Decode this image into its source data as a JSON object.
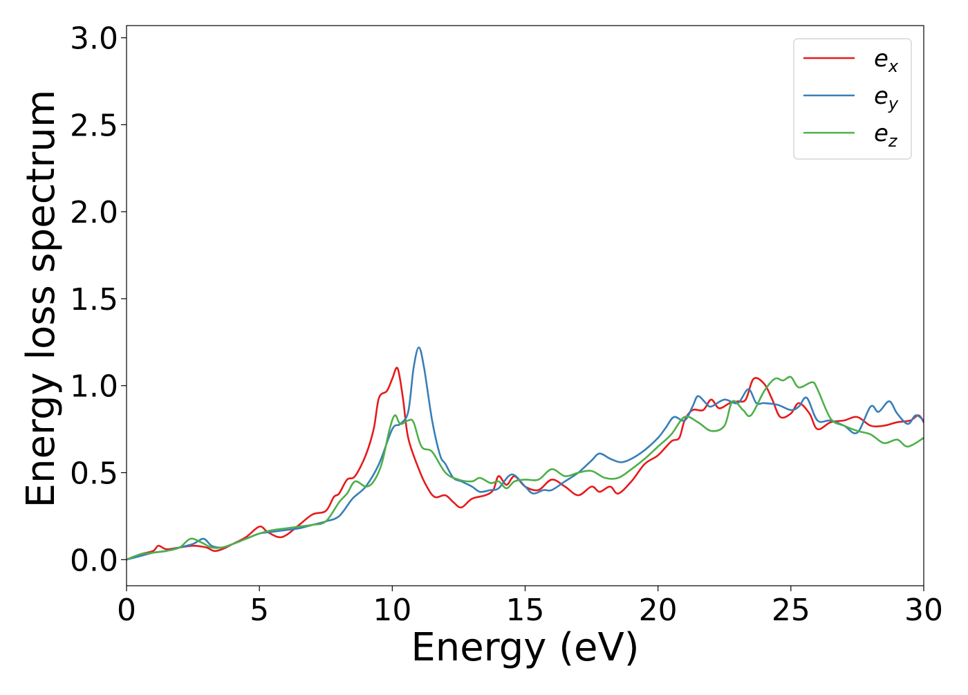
{
  "chart_data": {
    "type": "line",
    "title": "",
    "xlabel": "Energy (eV)",
    "ylabel": "Energy loss spectrum",
    "xlim": [
      0,
      30
    ],
    "ylim": [
      -0.15,
      3.07
    ],
    "xticks": [
      0,
      5,
      10,
      15,
      20,
      25,
      30
    ],
    "yticks": [
      0.0,
      0.5,
      1.0,
      1.5,
      2.0,
      2.5,
      3.0
    ],
    "grid": false,
    "legend_position": "top-right",
    "series": [
      {
        "name": "e",
        "subscript": "x",
        "color": "#e41a1c",
        "points": [
          [
            0,
            0
          ],
          [
            0.5,
            0.03
          ],
          [
            1,
            0.05
          ],
          [
            1.2,
            0.08
          ],
          [
            1.5,
            0.06
          ],
          [
            2,
            0.07
          ],
          [
            2.5,
            0.08
          ],
          [
            3,
            0.07
          ],
          [
            3.3,
            0.05
          ],
          [
            3.6,
            0.06
          ],
          [
            4,
            0.09
          ],
          [
            4.5,
            0.13
          ],
          [
            5,
            0.19
          ],
          [
            5.3,
            0.16
          ],
          [
            5.7,
            0.13
          ],
          [
            6,
            0.14
          ],
          [
            6.5,
            0.2
          ],
          [
            7,
            0.26
          ],
          [
            7.5,
            0.28
          ],
          [
            7.8,
            0.36
          ],
          [
            8,
            0.38
          ],
          [
            8.3,
            0.46
          ],
          [
            8.6,
            0.48
          ],
          [
            9,
            0.6
          ],
          [
            9.3,
            0.75
          ],
          [
            9.5,
            0.93
          ],
          [
            9.8,
            0.97
          ],
          [
            10,
            1.04
          ],
          [
            10.2,
            1.1
          ],
          [
            10.4,
            0.93
          ],
          [
            10.6,
            0.7
          ],
          [
            11,
            0.52
          ],
          [
            11.3,
            0.42
          ],
          [
            11.6,
            0.36
          ],
          [
            12,
            0.37
          ],
          [
            12.3,
            0.33
          ],
          [
            12.6,
            0.3
          ],
          [
            13,
            0.35
          ],
          [
            13.5,
            0.37
          ],
          [
            13.8,
            0.4
          ],
          [
            14,
            0.48
          ],
          [
            14.3,
            0.43
          ],
          [
            14.6,
            0.48
          ],
          [
            15,
            0.42
          ],
          [
            15.5,
            0.4
          ],
          [
            16,
            0.46
          ],
          [
            16.5,
            0.42
          ],
          [
            17,
            0.37
          ],
          [
            17.5,
            0.42
          ],
          [
            17.8,
            0.39
          ],
          [
            18.2,
            0.42
          ],
          [
            18.5,
            0.38
          ],
          [
            19,
            0.45
          ],
          [
            19.5,
            0.55
          ],
          [
            20,
            0.6
          ],
          [
            20.5,
            0.68
          ],
          [
            20.8,
            0.7
          ],
          [
            21,
            0.8
          ],
          [
            21.3,
            0.86
          ],
          [
            21.7,
            0.86
          ],
          [
            22,
            0.92
          ],
          [
            22.3,
            0.87
          ],
          [
            22.7,
            0.9
          ],
          [
            23,
            0.91
          ],
          [
            23.3,
            0.92
          ],
          [
            23.6,
            1.04
          ],
          [
            24,
            1.01
          ],
          [
            24.3,
            0.92
          ],
          [
            24.6,
            0.82
          ],
          [
            25,
            0.84
          ],
          [
            25.3,
            0.9
          ],
          [
            25.7,
            0.84
          ],
          [
            26,
            0.75
          ],
          [
            26.5,
            0.79
          ],
          [
            27,
            0.8
          ],
          [
            27.5,
            0.82
          ],
          [
            28,
            0.77
          ],
          [
            28.5,
            0.77
          ],
          [
            29,
            0.79
          ],
          [
            29.5,
            0.8
          ],
          [
            29.8,
            0.83
          ],
          [
            30,
            0.79
          ]
        ]
      },
      {
        "name": "e",
        "subscript": "y",
        "color": "#377eb8",
        "points": [
          [
            0,
            0
          ],
          [
            0.5,
            0.02
          ],
          [
            1,
            0.04
          ],
          [
            1.5,
            0.05
          ],
          [
            2,
            0.07
          ],
          [
            2.5,
            0.09
          ],
          [
            2.9,
            0.12
          ],
          [
            3.2,
            0.08
          ],
          [
            3.6,
            0.07
          ],
          [
            4,
            0.09
          ],
          [
            4.5,
            0.12
          ],
          [
            5,
            0.15
          ],
          [
            5.5,
            0.16
          ],
          [
            6,
            0.17
          ],
          [
            6.5,
            0.18
          ],
          [
            7,
            0.2
          ],
          [
            7.5,
            0.22
          ],
          [
            8,
            0.25
          ],
          [
            8.5,
            0.35
          ],
          [
            9,
            0.42
          ],
          [
            9.5,
            0.55
          ],
          [
            10,
            0.75
          ],
          [
            10.3,
            0.78
          ],
          [
            10.6,
            0.85
          ],
          [
            10.8,
            1.1
          ],
          [
            11,
            1.22
          ],
          [
            11.2,
            1.1
          ],
          [
            11.5,
            0.8
          ],
          [
            11.8,
            0.6
          ],
          [
            12,
            0.55
          ],
          [
            12.3,
            0.47
          ],
          [
            12.6,
            0.45
          ],
          [
            13,
            0.42
          ],
          [
            13.3,
            0.39
          ],
          [
            13.7,
            0.4
          ],
          [
            14,
            0.41
          ],
          [
            14.5,
            0.49
          ],
          [
            15,
            0.42
          ],
          [
            15.3,
            0.38
          ],
          [
            15.7,
            0.4
          ],
          [
            16,
            0.4
          ],
          [
            16.5,
            0.45
          ],
          [
            17,
            0.5
          ],
          [
            17.5,
            0.57
          ],
          [
            17.8,
            0.61
          ],
          [
            18.2,
            0.58
          ],
          [
            18.6,
            0.56
          ],
          [
            19,
            0.58
          ],
          [
            19.5,
            0.63
          ],
          [
            20,
            0.7
          ],
          [
            20.3,
            0.76
          ],
          [
            20.6,
            0.82
          ],
          [
            21,
            0.8
          ],
          [
            21.3,
            0.88
          ],
          [
            21.5,
            0.94
          ],
          [
            21.8,
            0.9
          ],
          [
            22,
            0.88
          ],
          [
            22.5,
            0.92
          ],
          [
            23,
            0.9
          ],
          [
            23.4,
            0.98
          ],
          [
            23.7,
            0.9
          ],
          [
            24,
            0.9
          ],
          [
            24.5,
            0.89
          ],
          [
            25,
            0.86
          ],
          [
            25.3,
            0.88
          ],
          [
            25.6,
            0.93
          ],
          [
            26,
            0.8
          ],
          [
            26.5,
            0.8
          ],
          [
            27,
            0.77
          ],
          [
            27.5,
            0.73
          ],
          [
            28,
            0.88
          ],
          [
            28.3,
            0.85
          ],
          [
            28.7,
            0.91
          ],
          [
            29,
            0.84
          ],
          [
            29.4,
            0.78
          ],
          [
            29.7,
            0.83
          ],
          [
            30,
            0.8
          ]
        ]
      },
      {
        "name": "e",
        "subscript": "z",
        "color": "#4daf4a",
        "points": [
          [
            0,
            0
          ],
          [
            0.5,
            0.03
          ],
          [
            1,
            0.04
          ],
          [
            1.5,
            0.05
          ],
          [
            2,
            0.07
          ],
          [
            2.4,
            0.12
          ],
          [
            2.8,
            0.1
          ],
          [
            3.2,
            0.07
          ],
          [
            3.6,
            0.07
          ],
          [
            4,
            0.09
          ],
          [
            4.5,
            0.12
          ],
          [
            5,
            0.15
          ],
          [
            5.5,
            0.17
          ],
          [
            6,
            0.18
          ],
          [
            6.5,
            0.19
          ],
          [
            7,
            0.2
          ],
          [
            7.5,
            0.22
          ],
          [
            8,
            0.33
          ],
          [
            8.3,
            0.38
          ],
          [
            8.6,
            0.45
          ],
          [
            9,
            0.42
          ],
          [
            9.3,
            0.45
          ],
          [
            9.6,
            0.55
          ],
          [
            9.9,
            0.75
          ],
          [
            10.1,
            0.83
          ],
          [
            10.3,
            0.78
          ],
          [
            10.6,
            0.8
          ],
          [
            10.8,
            0.79
          ],
          [
            11.1,
            0.65
          ],
          [
            11.5,
            0.62
          ],
          [
            12,
            0.5
          ],
          [
            12.5,
            0.46
          ],
          [
            13,
            0.45
          ],
          [
            13.3,
            0.47
          ],
          [
            13.7,
            0.44
          ],
          [
            14,
            0.45
          ],
          [
            14.3,
            0.41
          ],
          [
            14.6,
            0.45
          ],
          [
            15,
            0.46
          ],
          [
            15.5,
            0.46
          ],
          [
            16,
            0.52
          ],
          [
            16.5,
            0.48
          ],
          [
            17,
            0.5
          ],
          [
            17.5,
            0.51
          ],
          [
            18,
            0.47
          ],
          [
            18.5,
            0.47
          ],
          [
            19,
            0.52
          ],
          [
            19.5,
            0.58
          ],
          [
            20,
            0.65
          ],
          [
            20.5,
            0.72
          ],
          [
            21,
            0.82
          ],
          [
            21.5,
            0.79
          ],
          [
            22,
            0.74
          ],
          [
            22.5,
            0.77
          ],
          [
            22.8,
            0.91
          ],
          [
            23.2,
            0.86
          ],
          [
            23.5,
            0.83
          ],
          [
            24,
            0.97
          ],
          [
            24.4,
            1.04
          ],
          [
            24.7,
            1.03
          ],
          [
            25,
            1.05
          ],
          [
            25.3,
            0.99
          ],
          [
            25.8,
            1.02
          ],
          [
            26,
            0.98
          ],
          [
            26.5,
            0.81
          ],
          [
            27,
            0.77
          ],
          [
            27.5,
            0.74
          ],
          [
            28,
            0.72
          ],
          [
            28.5,
            0.67
          ],
          [
            29,
            0.69
          ],
          [
            29.4,
            0.65
          ],
          [
            30,
            0.7
          ]
        ]
      }
    ]
  }
}
